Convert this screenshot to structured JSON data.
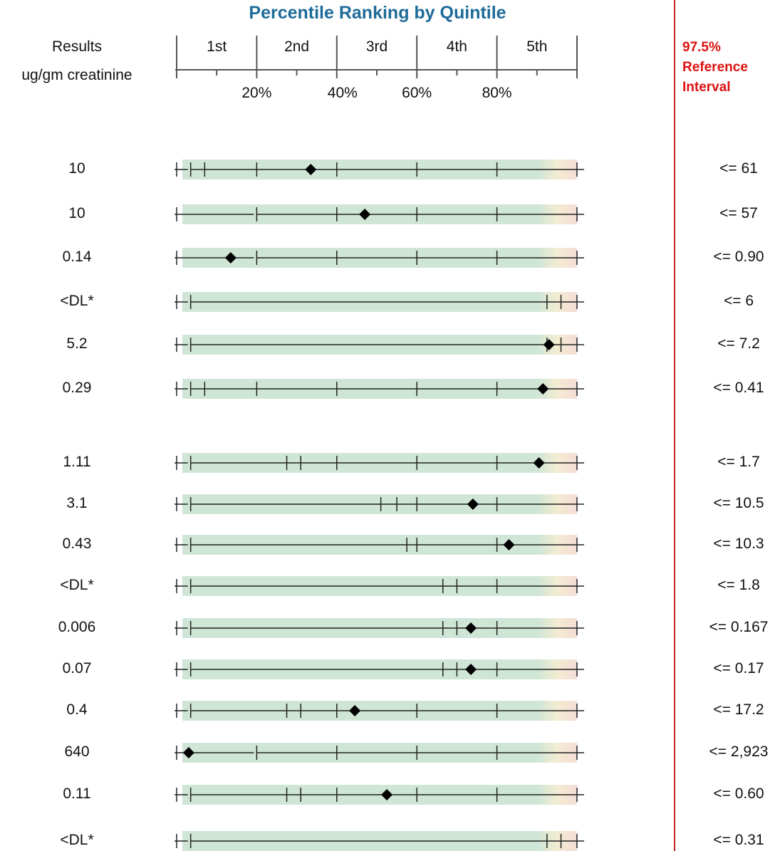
{
  "chart_data": {
    "type": "table",
    "title": "Percentile Ranking by Quintile",
    "results_header": [
      "Results",
      "ug/gm creatinine"
    ],
    "reference_header": [
      "97.5%",
      "Reference",
      "Interval"
    ],
    "quintiles": [
      "1st",
      "2nd",
      "3rd",
      "4th",
      "5th"
    ],
    "percent_ticks": [
      "20%",
      "40%",
      "60%",
      "80%"
    ],
    "colors": {
      "title": "#1f6b99",
      "reference": "#dd1111",
      "band": "#cfe6d6",
      "band_tail": "#f5dcd6",
      "marker": "#000000"
    },
    "rows": [
      {
        "result": "10",
        "reference": "<= 61",
        "marker_pct": 33.5,
        "ticks": [
          0,
          3.5,
          7,
          20,
          40,
          60,
          80,
          100
        ]
      },
      {
        "result": "10",
        "reference": "<= 57",
        "marker_pct": 47.0,
        "ticks": [
          0,
          20,
          40,
          60,
          80,
          100
        ]
      },
      {
        "result": "0.14",
        "reference": "<= 0.90",
        "marker_pct": 13.5,
        "ticks": [
          0,
          20,
          40,
          60,
          80,
          100
        ]
      },
      {
        "result": "<DL*",
        "reference": "<= 6",
        "marker_pct": null,
        "ticks": [
          0,
          3.5,
          92.5,
          96,
          100
        ]
      },
      {
        "result": "5.2",
        "reference": "<= 7.2",
        "marker_pct": 93.0,
        "ticks": [
          0,
          3.5,
          92.5,
          96,
          100
        ]
      },
      {
        "result": "0.29",
        "reference": "<= 0.41",
        "marker_pct": 91.5,
        "ticks": [
          0,
          3.5,
          7,
          20,
          40,
          60,
          80,
          100
        ]
      },
      {
        "result": "1.11",
        "reference": "<= 1.7",
        "marker_pct": 90.5,
        "ticks": [
          0,
          3.5,
          27.5,
          31,
          40,
          60,
          80,
          100
        ]
      },
      {
        "result": "3.1",
        "reference": "<= 10.5",
        "marker_pct": 74.0,
        "ticks": [
          0,
          3.5,
          51,
          55,
          60,
          80,
          100
        ]
      },
      {
        "result": "0.43",
        "reference": "<= 10.3",
        "marker_pct": 83.0,
        "ticks": [
          0,
          3.5,
          57.5,
          60,
          80,
          100
        ]
      },
      {
        "result": "<DL*",
        "reference": "<= 1.8",
        "marker_pct": null,
        "ticks": [
          0,
          3.5,
          66.5,
          70,
          80,
          100
        ]
      },
      {
        "result": "0.006",
        "reference": "<= 0.167",
        "marker_pct": 73.5,
        "ticks": [
          0,
          3.5,
          66.5,
          70,
          80,
          100
        ]
      },
      {
        "result": "0.07",
        "reference": "<= 0.17",
        "marker_pct": 73.5,
        "ticks": [
          0,
          3.5,
          66.5,
          70,
          80,
          100
        ]
      },
      {
        "result": "0.4",
        "reference": "<= 17.2",
        "marker_pct": 44.5,
        "ticks": [
          0,
          3.5,
          27.5,
          31,
          40,
          60,
          80,
          100
        ]
      },
      {
        "result": "640",
        "reference": "<= 2,923",
        "marker_pct": 3.0,
        "ticks": [
          0,
          20,
          40,
          60,
          80,
          100
        ]
      },
      {
        "result": "0.11",
        "reference": "<= 0.60",
        "marker_pct": 52.5,
        "ticks": [
          0,
          3.5,
          27.5,
          31,
          40,
          60,
          80,
          100
        ]
      },
      {
        "result": "<DL*",
        "reference": "<= 0.31",
        "marker_pct": null,
        "ticks": [
          0,
          3.5,
          92.5,
          96,
          100
        ]
      }
    ]
  }
}
